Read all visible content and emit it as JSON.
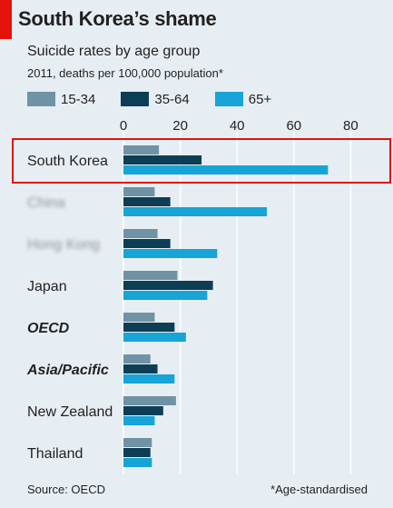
{
  "header": {
    "title": "South Korea’s shame",
    "subtitle": "Suicide rates by age group",
    "note": "2011, deaths per 100,000 population*"
  },
  "footer": {
    "source": "Source: OECD",
    "footnote": "*Age-standardised"
  },
  "colors": {
    "accent": "#e3120b",
    "highlight_box": "#e3120b",
    "series": [
      "#7092a5",
      "#0e3e55",
      "#17a4d6"
    ],
    "background": "#e6eef3"
  },
  "chart_data": {
    "type": "bar",
    "orientation": "horizontal",
    "title": "South Korea’s shame",
    "subtitle": "Suicide rates by age group",
    "categories": [
      "South Korea",
      "China",
      "Hong Kong",
      "Japan",
      "OECD",
      "Asia/Pacific",
      "New Zealand",
      "Thailand"
    ],
    "bold_italic_categories": [
      "OECD",
      "Asia/Pacific"
    ],
    "blurred_categories": [
      "China",
      "Hong Kong"
    ],
    "highlighted_category": "South Korea",
    "series": [
      {
        "name": "15-34",
        "values": [
          12.5,
          11,
          12,
          19,
          11,
          9.5,
          18.5,
          10
        ]
      },
      {
        "name": "35-64",
        "values": [
          27.5,
          16.5,
          16.5,
          31.5,
          18,
          12,
          14,
          9.5
        ]
      },
      {
        "name": "65+",
        "values": [
          72,
          50.5,
          33,
          29.5,
          22,
          18,
          11,
          10
        ]
      }
    ],
    "xlim": [
      0,
      90
    ],
    "xticks": [
      0,
      20,
      40,
      60,
      80
    ],
    "legend_placement": "top-left",
    "grid": true
  }
}
